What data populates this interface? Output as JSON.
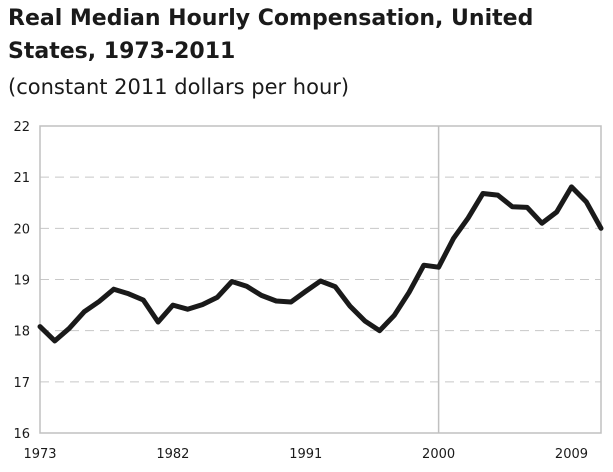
{
  "chart_data": {
    "type": "line",
    "title": "Real Median Hourly Compensation, United States, 1973-2011",
    "subtitle": "(constant 2011 dollars per hour)",
    "xlabel": "",
    "ylabel": "",
    "xlim": [
      1973,
      2011
    ],
    "ylim": [
      16,
      22
    ],
    "yticks": [
      16,
      17,
      18,
      19,
      20,
      21,
      22
    ],
    "xticks": [
      1973,
      1982,
      1991,
      2000,
      2009
    ],
    "grid": "horizontal dashed",
    "reference_line_x": 2000,
    "line_color": "#1a1a1a",
    "series": [
      {
        "x": [
          1973,
          1974,
          1975,
          1976,
          1977,
          1978,
          1979,
          1980,
          1981,
          1982,
          1983,
          1984,
          1985,
          1986,
          1987,
          1988,
          1989,
          1990,
          1991,
          1992,
          1993,
          1994,
          1995,
          1996,
          1997,
          1998,
          1999,
          2000,
          2001,
          2002,
          2003,
          2004,
          2005,
          2006,
          2007,
          2008,
          2009,
          2010,
          2011
        ],
        "y": [
          18.08,
          17.8,
          18.05,
          18.37,
          18.57,
          18.81,
          18.72,
          18.6,
          18.17,
          18.5,
          18.42,
          18.51,
          18.65,
          18.96,
          18.87,
          18.69,
          18.58,
          18.56,
          18.77,
          18.97,
          18.86,
          18.48,
          18.19,
          18.0,
          18.3,
          18.75,
          19.28,
          19.24,
          19.8,
          20.2,
          20.68,
          20.65,
          20.42,
          20.41,
          20.1,
          20.32,
          20.81,
          20.52,
          20.0
        ]
      }
    ]
  }
}
